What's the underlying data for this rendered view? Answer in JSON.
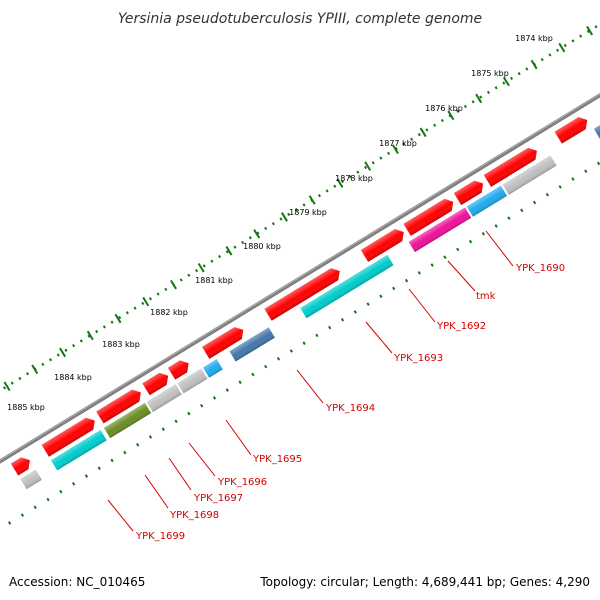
{
  "title": "Yersinia pseudotuberculosis YPIII, complete genome",
  "footer": {
    "accession": "Accession: NC_010465",
    "summary": "Topology: circular; Length: 4,689,441 bp; Genes: 4,290"
  },
  "ruler": {
    "labels": [
      "1874 kbp",
      "1875 kbp",
      "1876 kbp",
      "1877 kbp",
      "1878 kbp",
      "1879 kbp",
      "1880 kbp",
      "1881 kbp",
      "1882 kbp",
      "1883 kbp",
      "1884 kbp",
      "1885 kbp"
    ]
  },
  "genes": [
    "YPK_1690",
    "tmk",
    "YPK_1692",
    "YPK_1693",
    "YPK_1694",
    "YPK_1695",
    "YPK_1696",
    "YPK_1697",
    "YPK_1698",
    "YPK_1699"
  ],
  "colors": {
    "backbone": "#808080",
    "gene_red": "#ff0000",
    "cyan": "#00cccc",
    "magenta": "#ee1199",
    "steel": "#4477aa",
    "grey": "#c0c0c0",
    "olive": "#6b8e23",
    "sky": "#22aaee",
    "blue": "#0000dd",
    "purple": "#6655bb",
    "navy": "#000088",
    "ruler_green": "#117711",
    "label_red": "#d40000"
  }
}
